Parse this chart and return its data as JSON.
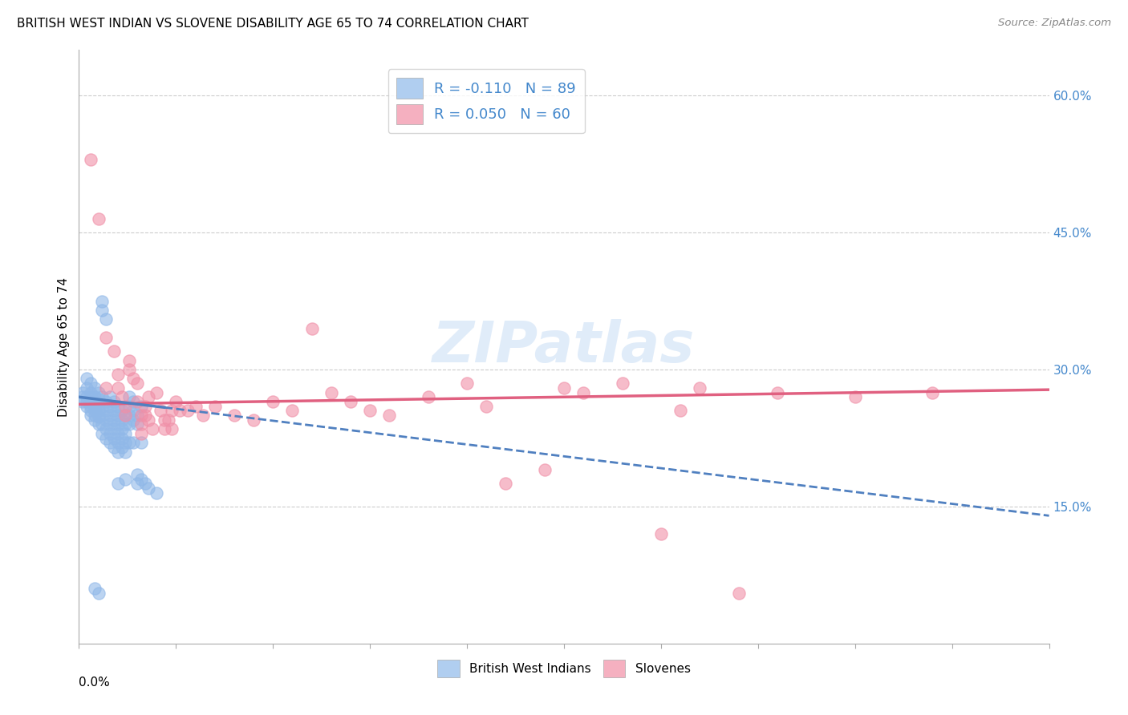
{
  "title": "BRITISH WEST INDIAN VS SLOVENE DISABILITY AGE 65 TO 74 CORRELATION CHART",
  "source": "Source: ZipAtlas.com",
  "ylabel": "Disability Age 65 to 74",
  "ytick_labels": [
    "60.0%",
    "45.0%",
    "30.0%",
    "15.0%"
  ],
  "ytick_values": [
    0.6,
    0.45,
    0.3,
    0.15
  ],
  "xlim": [
    0.0,
    0.25
  ],
  "ylim": [
    0.0,
    0.65
  ],
  "bwi_color": "#90b8e8",
  "slov_color": "#f090a8",
  "bwi_line_color": "#5080c0",
  "slov_line_color": "#e06080",
  "watermark_text": "ZIPatlas",
  "bwi_points": [
    [
      0.001,
      0.27
    ],
    [
      0.001,
      0.265
    ],
    [
      0.001,
      0.275
    ],
    [
      0.002,
      0.29
    ],
    [
      0.002,
      0.28
    ],
    [
      0.002,
      0.27
    ],
    [
      0.002,
      0.265
    ],
    [
      0.002,
      0.26
    ],
    [
      0.003,
      0.285
    ],
    [
      0.003,
      0.275
    ],
    [
      0.003,
      0.27
    ],
    [
      0.003,
      0.265
    ],
    [
      0.003,
      0.26
    ],
    [
      0.003,
      0.255
    ],
    [
      0.003,
      0.25
    ],
    [
      0.004,
      0.28
    ],
    [
      0.004,
      0.27
    ],
    [
      0.004,
      0.265
    ],
    [
      0.004,
      0.26
    ],
    [
      0.004,
      0.255
    ],
    [
      0.004,
      0.25
    ],
    [
      0.004,
      0.245
    ],
    [
      0.005,
      0.275
    ],
    [
      0.005,
      0.268
    ],
    [
      0.005,
      0.262
    ],
    [
      0.005,
      0.255
    ],
    [
      0.005,
      0.248
    ],
    [
      0.005,
      0.24
    ],
    [
      0.006,
      0.375
    ],
    [
      0.006,
      0.365
    ],
    [
      0.006,
      0.27
    ],
    [
      0.006,
      0.26
    ],
    [
      0.006,
      0.25
    ],
    [
      0.006,
      0.24
    ],
    [
      0.006,
      0.23
    ],
    [
      0.007,
      0.355
    ],
    [
      0.007,
      0.265
    ],
    [
      0.007,
      0.255
    ],
    [
      0.007,
      0.245
    ],
    [
      0.007,
      0.235
    ],
    [
      0.007,
      0.225
    ],
    [
      0.008,
      0.27
    ],
    [
      0.008,
      0.26
    ],
    [
      0.008,
      0.25
    ],
    [
      0.008,
      0.24
    ],
    [
      0.008,
      0.23
    ],
    [
      0.008,
      0.22
    ],
    [
      0.009,
      0.265
    ],
    [
      0.009,
      0.255
    ],
    [
      0.009,
      0.245
    ],
    [
      0.009,
      0.235
    ],
    [
      0.009,
      0.225
    ],
    [
      0.009,
      0.215
    ],
    [
      0.01,
      0.26
    ],
    [
      0.01,
      0.25
    ],
    [
      0.01,
      0.24
    ],
    [
      0.01,
      0.23
    ],
    [
      0.01,
      0.22
    ],
    [
      0.01,
      0.21
    ],
    [
      0.011,
      0.255
    ],
    [
      0.011,
      0.245
    ],
    [
      0.011,
      0.235
    ],
    [
      0.011,
      0.225
    ],
    [
      0.011,
      0.215
    ],
    [
      0.012,
      0.25
    ],
    [
      0.012,
      0.24
    ],
    [
      0.012,
      0.23
    ],
    [
      0.012,
      0.22
    ],
    [
      0.012,
      0.21
    ],
    [
      0.013,
      0.27
    ],
    [
      0.013,
      0.26
    ],
    [
      0.013,
      0.25
    ],
    [
      0.013,
      0.24
    ],
    [
      0.013,
      0.22
    ],
    [
      0.014,
      0.265
    ],
    [
      0.014,
      0.255
    ],
    [
      0.014,
      0.245
    ],
    [
      0.014,
      0.22
    ],
    [
      0.015,
      0.25
    ],
    [
      0.015,
      0.24
    ],
    [
      0.015,
      0.185
    ],
    [
      0.015,
      0.175
    ],
    [
      0.016,
      0.26
    ],
    [
      0.016,
      0.22
    ],
    [
      0.016,
      0.18
    ],
    [
      0.017,
      0.175
    ],
    [
      0.018,
      0.17
    ],
    [
      0.02,
      0.165
    ],
    [
      0.004,
      0.06
    ],
    [
      0.005,
      0.055
    ],
    [
      0.01,
      0.175
    ],
    [
      0.012,
      0.18
    ]
  ],
  "slov_points": [
    [
      0.003,
      0.53
    ],
    [
      0.005,
      0.465
    ],
    [
      0.007,
      0.335
    ],
    [
      0.007,
      0.28
    ],
    [
      0.009,
      0.32
    ],
    [
      0.01,
      0.295
    ],
    [
      0.01,
      0.28
    ],
    [
      0.011,
      0.27
    ],
    [
      0.012,
      0.26
    ],
    [
      0.012,
      0.25
    ],
    [
      0.013,
      0.31
    ],
    [
      0.013,
      0.3
    ],
    [
      0.014,
      0.29
    ],
    [
      0.015,
      0.285
    ],
    [
      0.015,
      0.265
    ],
    [
      0.016,
      0.25
    ],
    [
      0.016,
      0.24
    ],
    [
      0.016,
      0.23
    ],
    [
      0.017,
      0.26
    ],
    [
      0.017,
      0.25
    ],
    [
      0.018,
      0.27
    ],
    [
      0.018,
      0.245
    ],
    [
      0.019,
      0.235
    ],
    [
      0.02,
      0.275
    ],
    [
      0.021,
      0.255
    ],
    [
      0.022,
      0.245
    ],
    [
      0.022,
      0.235
    ],
    [
      0.023,
      0.245
    ],
    [
      0.024,
      0.255
    ],
    [
      0.024,
      0.235
    ],
    [
      0.025,
      0.265
    ],
    [
      0.026,
      0.255
    ],
    [
      0.028,
      0.255
    ],
    [
      0.03,
      0.26
    ],
    [
      0.032,
      0.25
    ],
    [
      0.035,
      0.26
    ],
    [
      0.04,
      0.25
    ],
    [
      0.045,
      0.245
    ],
    [
      0.05,
      0.265
    ],
    [
      0.055,
      0.255
    ],
    [
      0.06,
      0.345
    ],
    [
      0.065,
      0.275
    ],
    [
      0.07,
      0.265
    ],
    [
      0.075,
      0.255
    ],
    [
      0.08,
      0.25
    ],
    [
      0.09,
      0.27
    ],
    [
      0.1,
      0.285
    ],
    [
      0.105,
      0.26
    ],
    [
      0.11,
      0.175
    ],
    [
      0.12,
      0.19
    ],
    [
      0.125,
      0.28
    ],
    [
      0.13,
      0.275
    ],
    [
      0.14,
      0.285
    ],
    [
      0.15,
      0.12
    ],
    [
      0.155,
      0.255
    ],
    [
      0.16,
      0.28
    ],
    [
      0.17,
      0.055
    ],
    [
      0.18,
      0.275
    ],
    [
      0.2,
      0.27
    ],
    [
      0.22,
      0.275
    ]
  ]
}
